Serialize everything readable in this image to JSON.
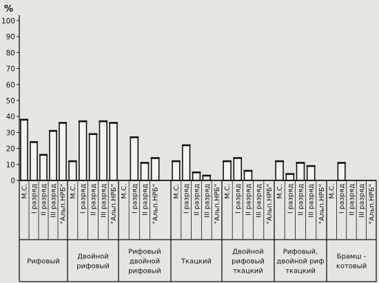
{
  "chart_data": {
    "type": "bar",
    "title": "",
    "xlabel": "",
    "ylabel": "%",
    "ylim": [
      0,
      100
    ],
    "yticks": [
      0,
      10,
      20,
      30,
      40,
      50,
      60,
      70,
      80,
      90,
      100
    ],
    "grid": false,
    "legend": "none",
    "groups": [
      {
        "name": "Рифовый",
        "lines": [
          "Рифовый"
        ],
        "bars": [
          {
            "label": "М.С.",
            "value": 38
          },
          {
            "label": "I разряд",
            "value": 24
          },
          {
            "label": "II разряд",
            "value": 16
          },
          {
            "label": "III разряд",
            "value": 31
          },
          {
            "label": "\"Альп.НРБ\"",
            "value": 36
          }
        ]
      },
      {
        "name": "Двойной рифовый",
        "lines": [
          "Двойной",
          "рифовый"
        ],
        "bars": [
          {
            "label": "М.С.",
            "value": 12
          },
          {
            "label": "I разряд",
            "value": 37
          },
          {
            "label": "II разряд",
            "value": 29
          },
          {
            "label": "III разряд",
            "value": 37
          },
          {
            "label": "\"Альп.НРБ\"",
            "value": 36
          }
        ]
      },
      {
        "name": "Рифовый двойной рифовый",
        "lines": [
          "Рифовый",
          "двойной",
          "рифовый"
        ],
        "bars": [
          {
            "label": "М.С.",
            "value": 0
          },
          {
            "label": "I разряд",
            "value": 27
          },
          {
            "label": "II разряд",
            "value": 11
          },
          {
            "label": "\"Альп.НРБ\"",
            "value": 14
          }
        ]
      },
      {
        "name": "Ткацкий",
        "lines": [
          "Ткацкий"
        ],
        "bars": [
          {
            "label": "М.С.",
            "value": 12
          },
          {
            "label": "I разряд",
            "value": 22
          },
          {
            "label": "II разряд",
            "value": 5
          },
          {
            "label": "III разряд",
            "value": 3
          },
          {
            "label": "\"Альп.НРБ\"",
            "value": 0
          }
        ]
      },
      {
        "name": "Двойной рифовый ткацкий",
        "lines": [
          "Двойной",
          "рифовый",
          "ткацкий"
        ],
        "bars": [
          {
            "label": "М.С.",
            "value": 12
          },
          {
            "label": "I разряд",
            "value": 14
          },
          {
            "label": "II разряд",
            "value": 6
          },
          {
            "label": "III разряд",
            "value": 0
          },
          {
            "label": "\"Альп.НРБ\"",
            "value": 0
          }
        ]
      },
      {
        "name": "Рифовый, двойной риф ткацкий",
        "lines": [
          "Рифовый,",
          "двойной риф",
          "ткацкий"
        ],
        "bars": [
          {
            "label": "М.С.",
            "value": 12
          },
          {
            "label": "I разряд",
            "value": 4
          },
          {
            "label": "II разряд",
            "value": 11
          },
          {
            "label": "III разряд",
            "value": 9
          },
          {
            "label": "\"Альп.НРБ\"",
            "value": 0
          }
        ]
      },
      {
        "name": "Брамшкотовый",
        "lines": [
          "Брамш -",
          "котовый"
        ],
        "bars": [
          {
            "label": "М.С.",
            "value": 0
          },
          {
            "label": "I разряд",
            "value": 11
          },
          {
            "label": "II разряд",
            "value": 0
          },
          {
            "label": "III разряд",
            "value": 0
          },
          {
            "label": "\"Альп.НРБ\"",
            "value": 0
          }
        ]
      }
    ]
  }
}
